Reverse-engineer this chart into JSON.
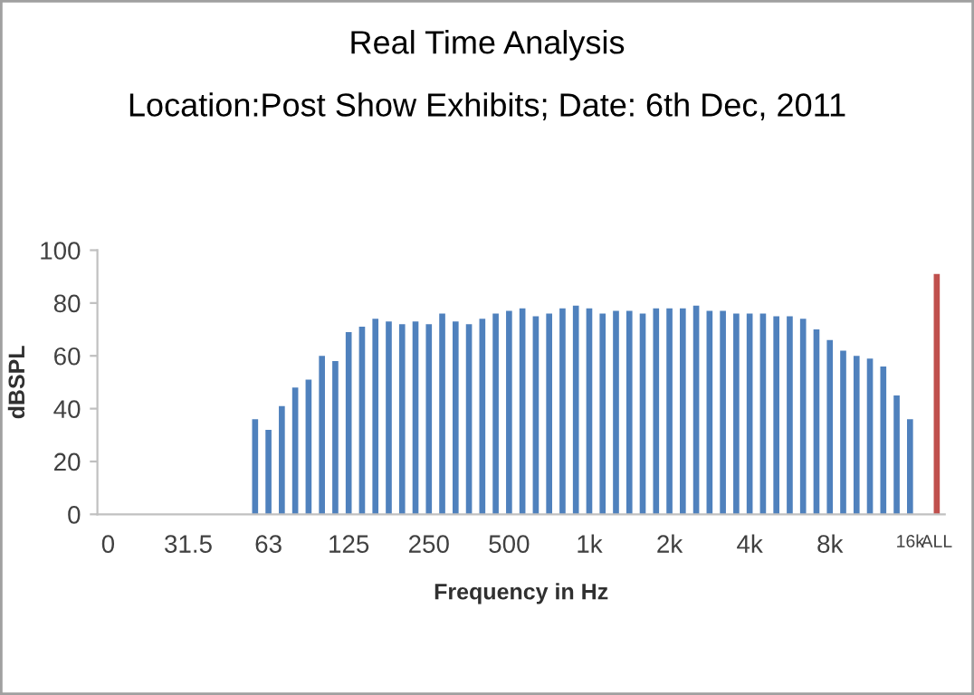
{
  "chart_data": {
    "type": "bar",
    "title": "Real Time Analysis",
    "subtitle": "Location:Post Show Exhibits; Date: 6th Dec, 2011",
    "xlabel": "Frequency in Hz",
    "ylabel": "dBSPL",
    "categories": [
      "0",
      null,
      null,
      null,
      null,
      null,
      "31.5",
      null,
      null,
      null,
      null,
      null,
      "63",
      null,
      null,
      null,
      null,
      null,
      "125",
      null,
      null,
      null,
      null,
      null,
      "250",
      null,
      null,
      null,
      null,
      null,
      "500",
      null,
      null,
      null,
      null,
      null,
      "1k",
      null,
      null,
      null,
      null,
      null,
      "2k",
      null,
      null,
      null,
      null,
      null,
      "4k",
      null,
      null,
      null,
      null,
      null,
      "8k",
      null,
      null,
      null,
      null,
      null,
      "16k",
      null,
      "ALL"
    ],
    "values": [
      null,
      null,
      null,
      null,
      null,
      null,
      null,
      null,
      null,
      null,
      null,
      36,
      32,
      41,
      48,
      51,
      60,
      58,
      69,
      71,
      74,
      73,
      72,
      73,
      72,
      76,
      73,
      72,
      74,
      76,
      77,
      78,
      75,
      76,
      78,
      79,
      78,
      76,
      77,
      77,
      76,
      78,
      78,
      78,
      79,
      77,
      77,
      76,
      76,
      76,
      75,
      75,
      74,
      70,
      66,
      62,
      60,
      59,
      56,
      45,
      36,
      null,
      91
    ],
    "colors": [
      "#4f81bd",
      "#4f81bd",
      "#4f81bd",
      "#4f81bd",
      "#4f81bd",
      "#4f81bd",
      "#4f81bd",
      "#4f81bd",
      "#4f81bd",
      "#4f81bd",
      "#4f81bd",
      "#4f81bd",
      "#4f81bd",
      "#4f81bd",
      "#4f81bd",
      "#4f81bd",
      "#4f81bd",
      "#4f81bd",
      "#4f81bd",
      "#4f81bd",
      "#4f81bd",
      "#4f81bd",
      "#4f81bd",
      "#4f81bd",
      "#4f81bd",
      "#4f81bd",
      "#4f81bd",
      "#4f81bd",
      "#4f81bd",
      "#4f81bd",
      "#4f81bd",
      "#4f81bd",
      "#4f81bd",
      "#4f81bd",
      "#4f81bd",
      "#4f81bd",
      "#4f81bd",
      "#4f81bd",
      "#4f81bd",
      "#4f81bd",
      "#4f81bd",
      "#4f81bd",
      "#4f81bd",
      "#4f81bd",
      "#4f81bd",
      "#4f81bd",
      "#4f81bd",
      "#4f81bd",
      "#4f81bd",
      "#4f81bd",
      "#4f81bd",
      "#4f81bd",
      "#4f81bd",
      "#4f81bd",
      "#4f81bd",
      "#4f81bd",
      "#4f81bd",
      "#4f81bd",
      "#4f81bd",
      "#4f81bd",
      "#4f81bd",
      "#4f81bd",
      "#c0504d"
    ],
    "ylim": [
      0,
      100
    ],
    "yticks": [
      0,
      20,
      40,
      60,
      80,
      100
    ],
    "grid": false,
    "legend": false
  }
}
